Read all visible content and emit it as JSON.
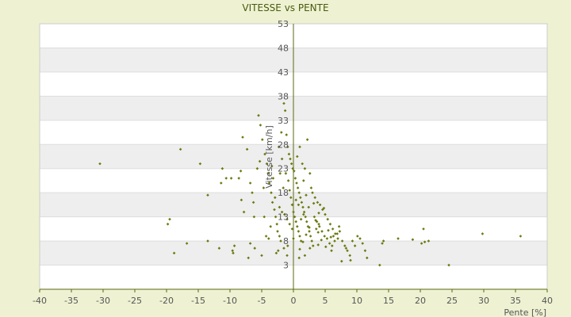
{
  "chart_data": {
    "type": "scatter",
    "title": "VITESSE vs PENTE",
    "xlabel": "Pente [%]",
    "ylabel": "Vitesse [km/h]",
    "xlim": [
      -40,
      40
    ],
    "ylim": [
      -2,
      53
    ],
    "xticks": [
      -40,
      -35,
      -30,
      -25,
      -20,
      -15,
      -10,
      -5,
      0,
      5,
      10,
      15,
      20,
      25,
      30,
      35,
      40
    ],
    "yticks": [
      3,
      8,
      13,
      18,
      23,
      28,
      33,
      38,
      43,
      48,
      53
    ],
    "grid": true,
    "legend": "none",
    "colors": {
      "marker": "#6b7a10",
      "axis": "#5a6a10",
      "band": "#eeeeee",
      "background": "#eef2d2"
    },
    "series": [
      {
        "points": [
          [
            -30.5,
            24
          ],
          [
            -17.8,
            27
          ],
          [
            -14.7,
            24
          ],
          [
            -19.5,
            12.5
          ],
          [
            -19.8,
            11.5
          ],
          [
            -18.8,
            5.5
          ],
          [
            -16.8,
            7.5
          ],
          [
            -13.5,
            8
          ],
          [
            -11.7,
            6.5
          ],
          [
            -9.6,
            6
          ],
          [
            -9.3,
            7
          ],
          [
            -9.5,
            5.5
          ],
          [
            -13.5,
            17.5
          ],
          [
            -11.2,
            23
          ],
          [
            -11.4,
            20
          ],
          [
            -10.6,
            21
          ],
          [
            -9.8,
            21
          ],
          [
            -8.6,
            21
          ],
          [
            -8.3,
            22.5
          ],
          [
            -8.0,
            29.5
          ],
          [
            -7.3,
            27
          ],
          [
            -7.8,
            14
          ],
          [
            -8.2,
            16.5
          ],
          [
            -6.8,
            20
          ],
          [
            -6.5,
            18
          ],
          [
            -6.3,
            16
          ],
          [
            -6.2,
            13
          ],
          [
            -6.8,
            7.5
          ],
          [
            -6.1,
            6.5
          ],
          [
            -5.7,
            23
          ],
          [
            -5.5,
            34
          ],
          [
            -5.2,
            32
          ],
          [
            -4.9,
            29
          ],
          [
            -4.5,
            26
          ],
          [
            -4.2,
            24
          ],
          [
            -4.0,
            22
          ],
          [
            -3.8,
            20
          ],
          [
            -3.5,
            18
          ],
          [
            -3.3,
            16
          ],
          [
            -3.0,
            14.5
          ],
          [
            -2.8,
            13
          ],
          [
            -2.6,
            11.5
          ],
          [
            -2.5,
            10
          ],
          [
            -2.2,
            9
          ],
          [
            -2.0,
            8
          ],
          [
            -1.8,
            25
          ],
          [
            -1.5,
            36.5
          ],
          [
            -1.3,
            35
          ],
          [
            -1.1,
            30
          ],
          [
            -0.9,
            27.5
          ],
          [
            -0.7,
            26
          ],
          [
            -0.5,
            25
          ],
          [
            -0.3,
            24
          ],
          [
            -0.1,
            23
          ],
          [
            -4.3,
            9
          ],
          [
            -4.6,
            13
          ],
          [
            -3.2,
            21
          ],
          [
            -2.9,
            17
          ],
          [
            -1.6,
            19
          ],
          [
            -1.2,
            22
          ],
          [
            -0.8,
            20.5
          ],
          [
            -0.6,
            18.5
          ],
          [
            -0.4,
            17
          ],
          [
            -0.2,
            15.5
          ],
          [
            0.0,
            14
          ],
          [
            0.2,
            13
          ],
          [
            0.4,
            12
          ],
          [
            0.6,
            11
          ],
          [
            0.8,
            10
          ],
          [
            1.0,
            9
          ],
          [
            1.2,
            8
          ],
          [
            0.1,
            22.5
          ],
          [
            0.3,
            21
          ],
          [
            0.5,
            20
          ],
          [
            0.7,
            19
          ],
          [
            0.9,
            18
          ],
          [
            1.1,
            17
          ],
          [
            1.3,
            16
          ],
          [
            1.5,
            15
          ],
          [
            1.7,
            14
          ],
          [
            1.9,
            13
          ],
          [
            2.1,
            12
          ],
          [
            2.3,
            11
          ],
          [
            2.5,
            10
          ],
          [
            2.7,
            9
          ],
          [
            2.9,
            8
          ],
          [
            3.1,
            7
          ],
          [
            1.4,
            24
          ],
          [
            1.8,
            23
          ],
          [
            2.2,
            29
          ],
          [
            2.6,
            22
          ],
          [
            3.0,
            18
          ],
          [
            3.4,
            17
          ],
          [
            3.8,
            16
          ],
          [
            4.2,
            15.5
          ],
          [
            4.6,
            14.5
          ],
          [
            5.0,
            13.5
          ],
          [
            5.4,
            12.5
          ],
          [
            5.8,
            11.5
          ],
          [
            6.2,
            10.5
          ],
          [
            6.6,
            9.5
          ],
          [
            7.0,
            8.5
          ],
          [
            3.3,
            13
          ],
          [
            3.7,
            12
          ],
          [
            4.1,
            11
          ],
          [
            4.5,
            10
          ],
          [
            4.9,
            9
          ],
          [
            5.3,
            8.5
          ],
          [
            5.7,
            7.5
          ],
          [
            6.1,
            7
          ],
          [
            6.5,
            8
          ],
          [
            6.9,
            9.5
          ],
          [
            7.3,
            10
          ],
          [
            7.7,
            8
          ],
          [
            8.1,
            7
          ],
          [
            8.5,
            6
          ],
          [
            8.9,
            5
          ],
          [
            9.3,
            8
          ],
          [
            9.7,
            7
          ],
          [
            10.1,
            9
          ],
          [
            10.5,
            8.5
          ],
          [
            10.9,
            7.5
          ],
          [
            11.3,
            6
          ],
          [
            11.6,
            4.5
          ],
          [
            8.3,
            6.5
          ],
          [
            9.0,
            4
          ],
          [
            7.6,
            3.8
          ],
          [
            4.0,
            11.5
          ],
          [
            3.6,
            10.5
          ],
          [
            2.4,
            15
          ],
          [
            2.0,
            17.5
          ],
          [
            1.6,
            13.5
          ],
          [
            1.2,
            12.5
          ],
          [
            0.8,
            15.5
          ],
          [
            0.4,
            16.5
          ],
          [
            -0.2,
            10.5
          ],
          [
            -0.6,
            11.5
          ],
          [
            -1.0,
            12.5
          ],
          [
            -1.4,
            13.5
          ],
          [
            -1.8,
            14
          ],
          [
            -2.2,
            15
          ],
          [
            -2.4,
            6
          ],
          [
            -1.0,
            5
          ],
          [
            0.9,
            4.5
          ],
          [
            1.8,
            5
          ],
          [
            2.6,
            6.5
          ],
          [
            3.9,
            7.2
          ],
          [
            5.1,
            6.8
          ],
          [
            6.0,
            6
          ],
          [
            14.0,
            7.5
          ],
          [
            14.2,
            8
          ],
          [
            13.6,
            3
          ],
          [
            16.5,
            8.5
          ],
          [
            18.8,
            8.3
          ],
          [
            20.2,
            7.5
          ],
          [
            20.7,
            7.8
          ],
          [
            21.3,
            8
          ],
          [
            20.5,
            10.5
          ],
          [
            24.5,
            3
          ],
          [
            29.8,
            9.5
          ],
          [
            35.8,
            9
          ],
          [
            -3.6,
            11
          ],
          [
            -3.9,
            8.5
          ],
          [
            -5.0,
            5
          ],
          [
            -7.1,
            4.5
          ],
          [
            -2.7,
            5.5
          ],
          [
            -1.5,
            6.5
          ],
          [
            -0.9,
            7
          ],
          [
            0.0,
            8.5
          ],
          [
            1.0,
            6.3
          ],
          [
            1.5,
            7.8
          ],
          [
            2.0,
            9.3
          ],
          [
            2.5,
            10.8
          ],
          [
            3.5,
            12.3
          ],
          [
            4.0,
            13.8
          ],
          [
            4.8,
            14.8
          ],
          [
            5.5,
            10.2
          ],
          [
            6.3,
            9
          ],
          [
            7.2,
            11
          ],
          [
            -1.9,
            30.5
          ],
          [
            -2.3,
            27.5
          ],
          [
            -4.7,
            19
          ],
          [
            -5.3,
            24.5
          ],
          [
            -3.4,
            23.5
          ],
          [
            -2.1,
            22
          ],
          [
            0.6,
            25.5
          ],
          [
            1.0,
            27.5
          ],
          [
            1.6,
            20.5
          ],
          [
            2.8,
            19
          ],
          [
            3.2,
            15.8
          ],
          [
            3.9,
            9.8
          ],
          [
            4.4,
            8.2
          ],
          [
            5.9,
            8.8
          ]
        ]
      }
    ]
  }
}
